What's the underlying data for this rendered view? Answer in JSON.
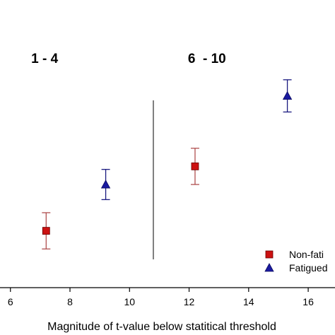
{
  "chart_data": {
    "type": "scatter",
    "xlabel": "Magnitude of t-value below statitical threshold",
    "ylabel": "",
    "xlim": [
      5.65,
      16.9
    ],
    "xticks": [
      6,
      8,
      10,
      12,
      14,
      16
    ],
    "xtick_labels": [
      "6",
      "8",
      "10",
      "12",
      "14",
      "16"
    ],
    "ylim": [
      0,
      1
    ],
    "y_axis_visible": false,
    "grid": false,
    "group_labels": [
      {
        "text": "1 - 4",
        "x": 7.15
      },
      {
        "text": "6  - 10",
        "x": 12.6
      }
    ],
    "separator_x": 10.8,
    "series": [
      {
        "name": "Non-fati",
        "marker": "square",
        "color": "#cc1111",
        "errorbar_color": "#b05050",
        "points": [
          {
            "x": 7.2,
            "y": 0.24,
            "err": 0.09
          },
          {
            "x": 12.2,
            "y": 0.56,
            "err": 0.09
          }
        ]
      },
      {
        "name": "Fatigued",
        "marker": "triangle",
        "color": "#1a1aa0",
        "errorbar_color": "#1a1a80",
        "points": [
          {
            "x": 9.2,
            "y": 0.47,
            "err": 0.075
          },
          {
            "x": 15.3,
            "y": 0.91,
            "err": 0.08
          }
        ]
      }
    ],
    "legend_position": "bottom-right"
  }
}
